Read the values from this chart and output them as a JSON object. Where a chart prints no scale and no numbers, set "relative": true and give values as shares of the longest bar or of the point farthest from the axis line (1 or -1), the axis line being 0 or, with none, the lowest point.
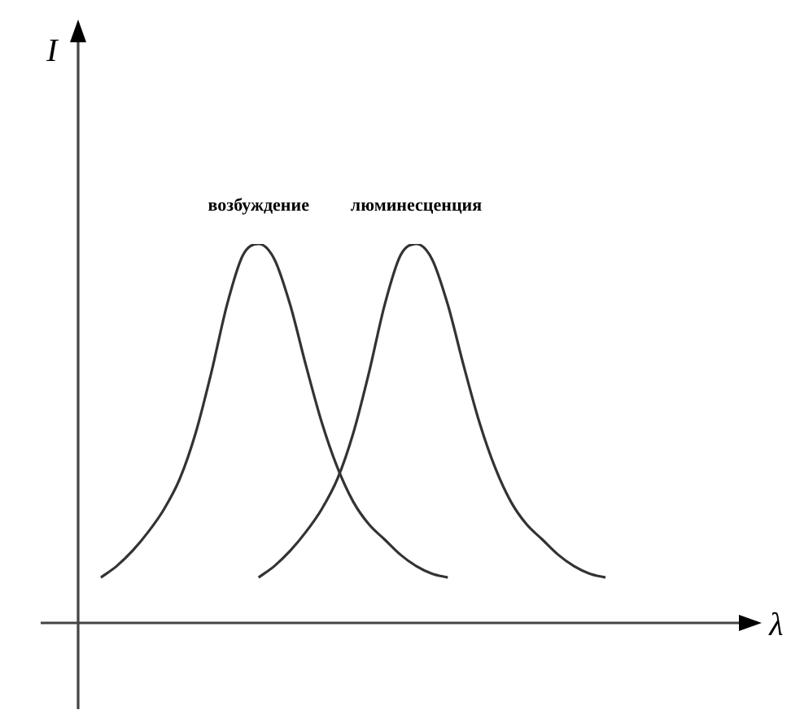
{
  "chart_data": {
    "type": "line",
    "relative": true,
    "xlabel": "λ",
    "annotations": [
      "I"
    ],
    "legend": false,
    "marker": "none",
    "line_style": "solid",
    "categories": [
      null,
      null,
      null,
      null,
      null,
      null,
      null,
      null,
      null,
      null,
      null,
      null,
      null,
      null,
      null,
      null,
      null,
      null,
      null,
      null,
      null,
      null,
      null,
      null,
      null,
      null,
      null,
      null,
      null,
      null,
      null,
      null,
      null
    ],
    "series": [
      {
        "name": "возбуждение",
        "color": "#333333",
        "values": [
          0.12,
          0.15,
          0.19,
          0.24,
          0.3,
          0.38,
          0.5,
          0.66,
          0.84,
          0.97,
          1,
          0.96,
          0.84,
          0.68,
          0.53,
          0.41,
          0.32,
          0.26,
          0.22,
          0.18,
          0.15,
          0.13,
          0.12,
          null,
          null,
          null,
          null,
          null,
          null,
          null,
          null,
          null,
          null
        ]
      },
      {
        "name": "люминесценция",
        "color": "#333333",
        "values": [
          null,
          null,
          null,
          null,
          null,
          null,
          null,
          null,
          null,
          null,
          0.12,
          0.15,
          0.19,
          0.24,
          0.3,
          0.38,
          0.5,
          0.66,
          0.84,
          0.97,
          1,
          0.96,
          0.84,
          0.68,
          0.53,
          0.41,
          0.32,
          0.26,
          0.22,
          0.18,
          0.15,
          0.13,
          0.12
        ]
      }
    ]
  }
}
